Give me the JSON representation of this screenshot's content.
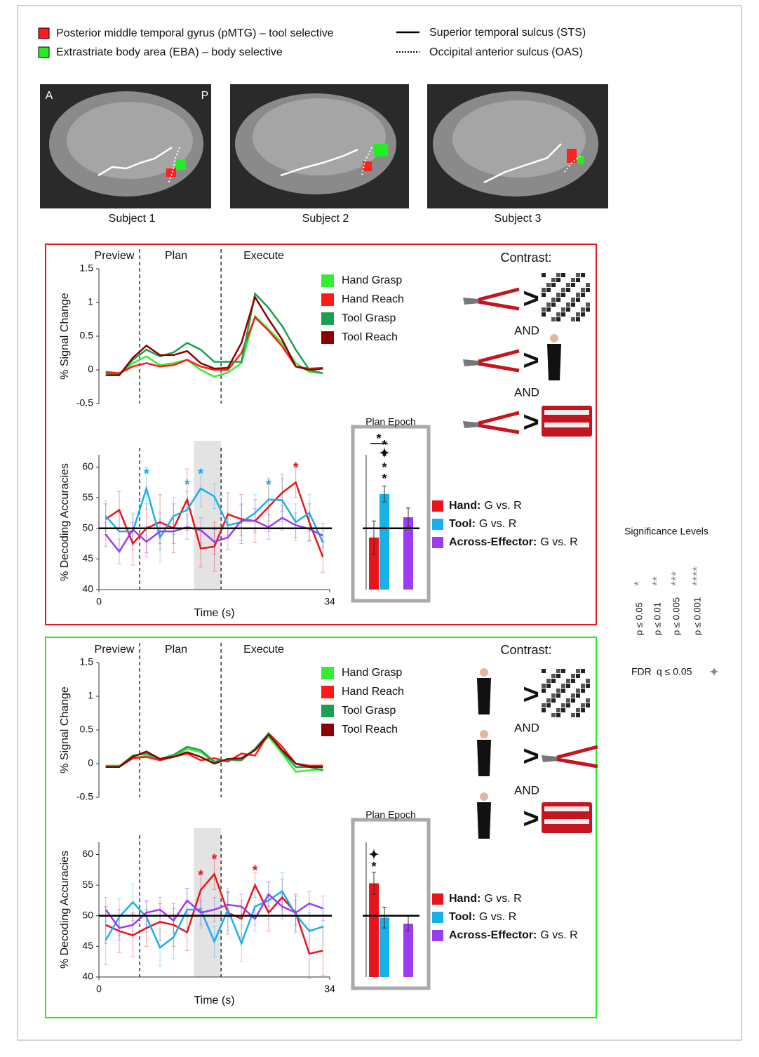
{
  "region_legend": [
    {
      "label": "Posterior middle temporal gyrus (pMTG) – tool selective",
      "color": "#ff1a1a"
    },
    {
      "label": "Extrastriate body area (EBA) – body selective",
      "color": "#22ee22"
    }
  ],
  "line_legend": [
    {
      "label": "Superior temporal sulcus (STS)",
      "style": "solid"
    },
    {
      "label": "Occipital anterior sulcus (OAS)",
      "style": "dotted"
    }
  ],
  "brain_images": {
    "orientation": [
      "A",
      "P"
    ],
    "subjects": [
      "Subject 1",
      "Subject 2",
      "Subject 3"
    ]
  },
  "contrasts": [
    {
      "title": "Contrast:",
      "operators": [
        ">",
        ">",
        ">"
      ],
      "joins": [
        "AND",
        "AND"
      ]
    },
    {
      "title": "Contrast:",
      "operators": [
        ">",
        ">",
        ">"
      ],
      "joins": [
        "AND",
        "AND"
      ]
    }
  ],
  "significance": {
    "title": "Significance Levels",
    "levels": [
      {
        "label": "p ≤ 0.05",
        "stars": "*"
      },
      {
        "label": "p ≤ 0.01",
        "stars": "**"
      },
      {
        "label": "p ≤ 0.005",
        "stars": "***"
      },
      {
        "label": "p ≤ 0.001",
        "stars": "****"
      }
    ],
    "fdr_label": "FDR",
    "fdr_threshold": "q ≤ 0.05"
  },
  "chart_data": [
    {
      "type": "line",
      "ylabel": "% Signal Change",
      "epochs": [
        "Preview",
        "Plan",
        "Execute"
      ],
      "vlines": [
        6,
        18
      ],
      "xlim": [
        0,
        34
      ],
      "ylim": [
        -0.5,
        1.5
      ],
      "yticks": [
        -0.5,
        0,
        0.5,
        1,
        1.5
      ],
      "x": [
        1,
        3,
        5,
        7,
        9,
        11,
        13,
        15,
        17,
        19,
        21,
        23,
        25,
        27,
        29,
        31,
        33
      ],
      "series": [
        {
          "name": "Hand Grasp",
          "color": "#33ee33",
          "values": [
            -0.05,
            -0.07,
            0.1,
            0.2,
            0.07,
            0.1,
            0.15,
            0.0,
            -0.1,
            -0.04,
            0.1,
            0.8,
            0.6,
            0.4,
            0.1,
            -0.03,
            -0.05
          ]
        },
        {
          "name": "Hand Reach",
          "color": "#ff1a1a",
          "values": [
            -0.03,
            -0.05,
            0.05,
            0.1,
            0.05,
            0.07,
            0.15,
            0.05,
            0.0,
            0.0,
            0.25,
            0.78,
            0.58,
            0.35,
            0.05,
            0.02,
            0.03
          ]
        },
        {
          "name": "Tool Grasp",
          "color": "#1aa050",
          "values": [
            -0.05,
            -0.07,
            0.15,
            0.3,
            0.2,
            0.26,
            0.4,
            0.3,
            0.12,
            0.12,
            0.12,
            1.13,
            0.92,
            0.65,
            0.3,
            0.0,
            -0.05
          ]
        },
        {
          "name": "Tool Reach",
          "color": "#8b0000",
          "values": [
            -0.08,
            -0.08,
            0.18,
            0.36,
            0.22,
            0.22,
            0.28,
            0.1,
            0.02,
            0.03,
            0.4,
            1.08,
            0.75,
            0.45,
            0.05,
            0.0,
            0.02
          ]
        }
      ]
    },
    {
      "type": "line",
      "ylabel": "% Decoding Accuracies",
      "xlabel": "Time (s)",
      "vlines": [
        6,
        18
      ],
      "shade": [
        14,
        18
      ],
      "hline": 50,
      "xlim": [
        0,
        34
      ],
      "xticks": [
        0,
        34
      ],
      "ylim": [
        40,
        62
      ],
      "yticks": [
        40,
        45,
        50,
        55,
        60
      ],
      "x": [
        1,
        3,
        5,
        7,
        9,
        11,
        13,
        15,
        17,
        19,
        21,
        23,
        25,
        27,
        29,
        31,
        33
      ],
      "series": [
        {
          "name": "Hand:",
          "comparison": "G vs. R",
          "color": "#e8141c",
          "values": [
            51.5,
            53,
            47.5,
            50,
            51,
            50,
            54.7,
            46.7,
            47,
            52.3,
            51.5,
            51.2,
            53.5,
            55.8,
            57.5,
            51,
            45.3
          ],
          "errors": [
            2.5,
            3,
            3.5,
            4,
            4.5,
            4,
            5,
            3,
            4,
            3.5,
            4,
            3.5,
            4,
            3,
            2.5,
            3,
            2.5
          ]
        },
        {
          "name": "Tool:",
          "comparison": "G vs. R",
          "color": "#1ab0e8",
          "values": [
            52,
            49.5,
            49.5,
            56.5,
            48.5,
            52,
            53,
            56.5,
            55.2,
            50.5,
            51,
            52.5,
            54.7,
            54.6,
            51,
            52.5,
            47.7
          ],
          "errors": [
            2.5,
            3,
            3,
            3.5,
            4,
            3,
            3,
            3,
            2,
            2,
            3,
            3,
            3.5,
            3.5,
            3,
            3,
            2
          ]
        },
        {
          "name": "Across-Effector:",
          "comparison": "G vs. R",
          "color": "#9b3cf0",
          "values": [
            49,
            46.2,
            49.8,
            47.8,
            49.5,
            49.5,
            50.2,
            49.7,
            47.8,
            48.5,
            51.3,
            51.2,
            50.2,
            51.7,
            50.5,
            49.9,
            48.8
          ],
          "errors": [
            2,
            2,
            2.5,
            2.5,
            2,
            2,
            2,
            2,
            2,
            2,
            2.5,
            2,
            2,
            2,
            2,
            2,
            2
          ]
        }
      ],
      "annotations": [
        {
          "text": "*",
          "x": 7,
          "color": "#1ab0e8"
        },
        {
          "text": "*",
          "x": 13,
          "color": "#1ab0e8"
        },
        {
          "text": "*",
          "x": 15,
          "color": "#1ab0e8"
        },
        {
          "text": "*",
          "x": 25,
          "color": "#1ab0e8"
        },
        {
          "text": "*",
          "x": 29,
          "color": "#e8141c"
        }
      ]
    },
    {
      "type": "bar",
      "title": "Plan Epoch",
      "ylim": [
        40,
        62
      ],
      "hline": 50,
      "values": [
        48.5,
        55.6,
        51.8
      ],
      "errors": [
        2.7,
        1.3,
        1.5
      ],
      "colors": [
        "#e8141c",
        "#1ab0e8",
        "#9b3cf0"
      ],
      "annotations": [
        {
          "text": "*"
        },
        {
          "text": "****"
        }
      ]
    },
    {
      "type": "line",
      "ylabel": "% Signal Change",
      "epochs": [
        "Preview",
        "Plan",
        "Execute"
      ],
      "vlines": [
        6,
        18
      ],
      "xlim": [
        0,
        34
      ],
      "ylim": [
        -0.5,
        1.5
      ],
      "yticks": [
        -0.5,
        0,
        0.5,
        1,
        1.5
      ],
      "x": [
        1,
        3,
        5,
        7,
        9,
        11,
        13,
        15,
        17,
        19,
        21,
        23,
        25,
        27,
        29,
        31,
        33
      ],
      "series": [
        {
          "name": "Hand Grasp",
          "color": "#33ee33",
          "values": [
            -0.03,
            -0.03,
            0.08,
            0.12,
            0.05,
            0.1,
            0.22,
            0.17,
            0.02,
            0.06,
            0.06,
            0.2,
            0.4,
            0.15,
            -0.12,
            -0.1,
            -0.08
          ]
        },
        {
          "name": "Hand Reach",
          "color": "#ff1a1a",
          "values": [
            -0.05,
            -0.05,
            0.08,
            0.1,
            0.05,
            0.1,
            0.15,
            0.05,
            0.08,
            0.03,
            0.15,
            0.12,
            0.45,
            0.25,
            0.0,
            -0.03,
            -0.03
          ]
        },
        {
          "name": "Tool Grasp",
          "color": "#1aa050",
          "values": [
            -0.04,
            -0.04,
            0.12,
            0.15,
            0.07,
            0.13,
            0.25,
            0.2,
            0.03,
            0.06,
            0.05,
            0.22,
            0.45,
            0.18,
            -0.05,
            -0.05,
            -0.1
          ]
        },
        {
          "name": "Tool Reach",
          "color": "#8b0000",
          "values": [
            -0.05,
            -0.05,
            0.1,
            0.18,
            0.07,
            0.1,
            0.17,
            0.1,
            0.0,
            0.07,
            0.08,
            0.2,
            0.43,
            0.2,
            0.0,
            -0.05,
            -0.05
          ]
        }
      ]
    },
    {
      "type": "line",
      "ylabel": "% Decoding Accuracies",
      "xlabel": "Time (s)",
      "vlines": [
        6,
        18
      ],
      "shade": [
        14,
        18
      ],
      "hline": 50,
      "xlim": [
        0,
        34
      ],
      "xticks": [
        0,
        34
      ],
      "ylim": [
        40,
        62
      ],
      "yticks": [
        40,
        45,
        50,
        55,
        60
      ],
      "x": [
        1,
        3,
        5,
        7,
        9,
        11,
        13,
        15,
        17,
        19,
        21,
        23,
        25,
        27,
        29,
        31,
        33
      ],
      "series": [
        {
          "name": "Hand:",
          "comparison": "G vs. R",
          "color": "#e8141c",
          "values": [
            48.5,
            47.5,
            46.8,
            48,
            49,
            48.5,
            47.3,
            54.2,
            56.8,
            50.5,
            49.5,
            55,
            50.5,
            53,
            50.5,
            43.8,
            44.3
          ],
          "errors": [
            3,
            3.5,
            3.5,
            3,
            3,
            3.5,
            3,
            3,
            2.5,
            3.5,
            3,
            2,
            3,
            3,
            3,
            4,
            4
          ]
        },
        {
          "name": "Tool:",
          "comparison": "G vs. R",
          "color": "#1ab0e8",
          "values": [
            46,
            49.8,
            52.2,
            49.8,
            44.8,
            46.5,
            51,
            51,
            45.8,
            51,
            45.5,
            51.5,
            52.5,
            54,
            50.2,
            47.5,
            48.2
          ],
          "errors": [
            4,
            3,
            3,
            2.5,
            3,
            3.5,
            3.5,
            3,
            2.5,
            3.5,
            3,
            3,
            3,
            3,
            3,
            3,
            3
          ]
        },
        {
          "name": "Across-Effector:",
          "comparison": "G vs. R",
          "color": "#9b3cf0",
          "values": [
            51,
            48,
            48.5,
            50.5,
            51,
            49.2,
            52.5,
            50.5,
            51,
            51.8,
            51.5,
            49.5,
            53.5,
            51.5,
            50.5,
            52,
            51.2
          ],
          "errors": [
            2,
            2,
            2,
            2,
            2,
            2,
            2,
            2,
            2,
            2,
            2,
            2,
            2,
            2,
            2,
            2,
            2
          ]
        }
      ],
      "annotations": [
        {
          "text": "*",
          "x": 15,
          "color": "#e8141c"
        },
        {
          "text": "*",
          "x": 17,
          "color": "#e8141c"
        },
        {
          "text": "*",
          "x": 23,
          "color": "#e8141c"
        }
      ]
    },
    {
      "type": "bar",
      "title": "Plan Epoch",
      "ylim": [
        40,
        62
      ],
      "hline": 50,
      "values": [
        55.3,
        49.7,
        48.7
      ],
      "errors": [
        1.8,
        1.7,
        1.2
      ],
      "colors": [
        "#e8141c",
        "#1ab0e8",
        "#9b3cf0"
      ],
      "annotations": [
        {
          "text": "*"
        }
      ]
    }
  ]
}
